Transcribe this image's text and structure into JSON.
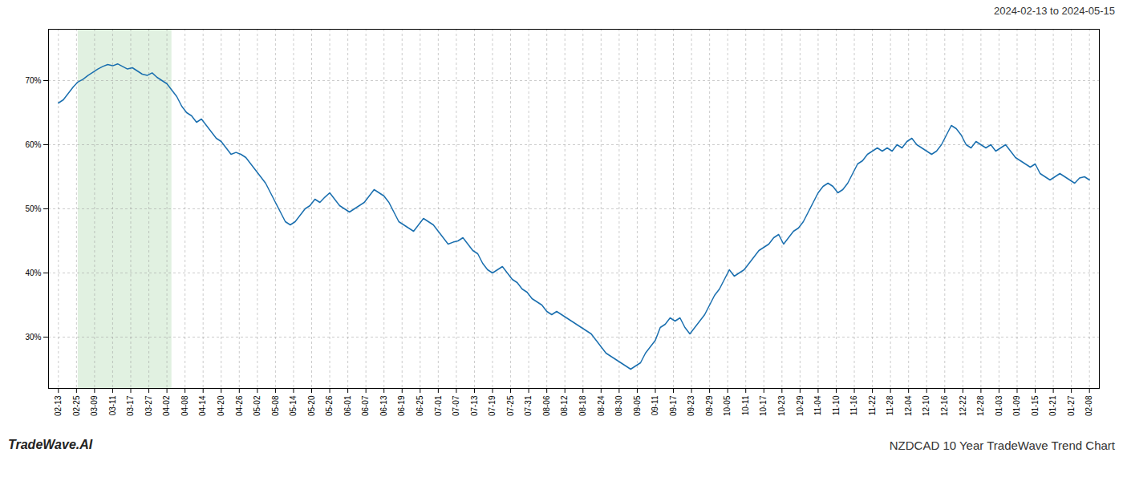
{
  "chart_data": {
    "type": "line",
    "title": "NZDCAD 10 Year TradeWave Trend Chart",
    "subtitle": "2024-02-13 to 2024-05-15",
    "annotations": [
      "TradeWave.AI"
    ],
    "color": "#1a6faf",
    "grid": true,
    "shade": {
      "x": [
        4,
        23
      ],
      "color": "#c8e6c8"
    },
    "xlim": [
      -2,
      211
    ],
    "xticks": [
      {
        "value": 0,
        "label": "02-13"
      },
      {
        "value": 3.6666666667,
        "label": "02-25"
      },
      {
        "value": 7.3333333333,
        "label": "03-09"
      },
      {
        "value": 11,
        "label": "03-11"
      },
      {
        "value": 14.6666666667,
        "label": "03-17"
      },
      {
        "value": 18.3333333333,
        "label": "03-27"
      },
      {
        "value": 22,
        "label": "04-02"
      },
      {
        "value": 25.6666666667,
        "label": "04-08"
      },
      {
        "value": 29.3333333333,
        "label": "04-14"
      },
      {
        "value": 33,
        "label": "04-20"
      },
      {
        "value": 36.6666666667,
        "label": "04-26"
      },
      {
        "value": 40.3333333333,
        "label": "05-02"
      },
      {
        "value": 44,
        "label": "05-08"
      },
      {
        "value": 47.6666666667,
        "label": "05-14"
      },
      {
        "value": 51.3333333333,
        "label": "05-20"
      },
      {
        "value": 55,
        "label": "05-26"
      },
      {
        "value": 58.6666666667,
        "label": "06-01"
      },
      {
        "value": 62.3333333333,
        "label": "06-07"
      },
      {
        "value": 66,
        "label": "06-13"
      },
      {
        "value": 69.6666666667,
        "label": "06-19"
      },
      {
        "value": 73.3333333333,
        "label": "06-25"
      },
      {
        "value": 77,
        "label": "07-01"
      },
      {
        "value": 80.6666666667,
        "label": "07-07"
      },
      {
        "value": 84.3333333333,
        "label": "07-13"
      },
      {
        "value": 88,
        "label": "07-19"
      },
      {
        "value": 91.6666666667,
        "label": "07-25"
      },
      {
        "value": 95.3333333333,
        "label": "07-31"
      },
      {
        "value": 99,
        "label": "08-06"
      },
      {
        "value": 102.6666666667,
        "label": "08-12"
      },
      {
        "value": 106.3333333333,
        "label": "08-18"
      },
      {
        "value": 110,
        "label": "08-24"
      },
      {
        "value": 113.6666666667,
        "label": "08-30"
      },
      {
        "value": 117.3333333333,
        "label": "09-05"
      },
      {
        "value": 121,
        "label": "09-11"
      },
      {
        "value": 124.6666666667,
        "label": "09-17"
      },
      {
        "value": 128.3333333333,
        "label": "09-23"
      },
      {
        "value": 132,
        "label": "09-29"
      },
      {
        "value": 135.6666666667,
        "label": "10-05"
      },
      {
        "value": 139.3333333333,
        "label": "10-11"
      },
      {
        "value": 143,
        "label": "10-17"
      },
      {
        "value": 146.6666666667,
        "label": "10-23"
      },
      {
        "value": 150.3333333333,
        "label": "10-29"
      },
      {
        "value": 154,
        "label": "11-04"
      },
      {
        "value": 157.6666666667,
        "label": "11-10"
      },
      {
        "value": 161.3333333333,
        "label": "11-16"
      },
      {
        "value": 165,
        "label": "11-22"
      },
      {
        "value": 168.6666666667,
        "label": "11-28"
      },
      {
        "value": 172.3333333333,
        "label": "12-04"
      },
      {
        "value": 176,
        "label": "12-10"
      },
      {
        "value": 179.6666666667,
        "label": "12-16"
      },
      {
        "value": 183.3333333333,
        "label": "12-22"
      },
      {
        "value": 187,
        "label": "12-28"
      },
      {
        "value": 190.6666666667,
        "label": "01-03"
      },
      {
        "value": 194.3333333333,
        "label": "01-09"
      },
      {
        "value": 198,
        "label": "01-15"
      },
      {
        "value": 201.6666666667,
        "label": "01-21"
      },
      {
        "value": 205.3333333333,
        "label": "01-27"
      },
      {
        "value": 209,
        "label": "02-08"
      }
    ],
    "ylim": [
      22,
      78
    ],
    "yticks": [
      {
        "value": 30,
        "label": "30%"
      },
      {
        "value": 40,
        "label": "40%"
      },
      {
        "value": 50,
        "label": "50%"
      },
      {
        "value": 60,
        "label": "60%"
      },
      {
        "value": 70,
        "label": "70%"
      }
    ],
    "x": [
      0,
      1,
      2,
      3,
      4,
      5,
      6,
      7,
      8,
      9,
      10,
      11,
      12,
      13,
      14,
      15,
      16,
      17,
      18,
      19,
      20,
      21,
      22,
      23,
      24,
      25,
      26,
      27,
      28,
      29,
      30,
      31,
      32,
      33,
      34,
      35,
      36,
      37,
      38,
      39,
      40,
      41,
      42,
      43,
      44,
      45,
      46,
      47,
      48,
      49,
      50,
      51,
      52,
      53,
      54,
      55,
      56,
      57,
      58,
      59,
      60,
      61,
      62,
      63,
      64,
      65,
      66,
      67,
      68,
      69,
      70,
      71,
      72,
      73,
      74,
      75,
      76,
      77,
      78,
      79,
      80,
      81,
      82,
      83,
      84,
      85,
      86,
      87,
      88,
      89,
      90,
      91,
      92,
      93,
      94,
      95,
      96,
      97,
      98,
      99,
      100,
      101,
      102,
      103,
      104,
      105,
      106,
      107,
      108,
      109,
      110,
      111,
      112,
      113,
      114,
      115,
      116,
      117,
      118,
      119,
      120,
      121,
      122,
      123,
      124,
      125,
      126,
      127,
      128,
      129,
      130,
      131,
      132,
      133,
      134,
      135,
      136,
      137,
      138,
      139,
      140,
      141,
      142,
      143,
      144,
      145,
      146,
      147,
      148,
      149,
      150,
      151,
      152,
      153,
      154,
      155,
      156,
      157,
      158,
      159,
      160,
      161,
      162,
      163,
      164,
      165,
      166,
      167,
      168,
      169,
      170,
      171,
      172,
      173,
      174,
      175,
      176,
      177,
      178,
      179,
      180,
      181,
      182,
      183,
      184,
      185,
      186,
      187,
      188,
      189,
      190,
      191,
      192,
      193,
      194,
      195,
      196,
      197,
      198,
      199,
      200,
      201,
      202,
      203,
      204,
      205,
      206,
      207,
      208,
      209
    ],
    "values": [
      66.5,
      67.0,
      68.0,
      69.0,
      69.8,
      70.2,
      70.8,
      71.3,
      71.8,
      72.2,
      72.5,
      72.3,
      72.6,
      72.2,
      71.8,
      72.0,
      71.5,
      71.0,
      70.8,
      71.2,
      70.5,
      70.0,
      69.5,
      68.5,
      67.5,
      66.0,
      65.0,
      64.5,
      63.5,
      64.0,
      63.0,
      62.0,
      61.0,
      60.5,
      59.5,
      58.5,
      58.8,
      58.5,
      58.0,
      57.0,
      56.0,
      55.0,
      54.0,
      52.5,
      51.0,
      49.5,
      48.0,
      47.5,
      48.0,
      49.0,
      50.0,
      50.5,
      51.5,
      51.0,
      51.8,
      52.5,
      51.5,
      50.5,
      50.0,
      49.5,
      50.0,
      50.5,
      51.0,
      52.0,
      53.0,
      52.5,
      52.0,
      51.0,
      49.5,
      48.0,
      47.5,
      47.0,
      46.5,
      47.5,
      48.5,
      48.0,
      47.5,
      46.5,
      45.5,
      44.5,
      44.8,
      45.0,
      45.5,
      44.5,
      43.5,
      43.0,
      41.5,
      40.5,
      40.0,
      40.5,
      41.0,
      40.0,
      39.0,
      38.5,
      37.5,
      37.0,
      36.0,
      35.5,
      35.0,
      34.0,
      33.5,
      34.0,
      33.5,
      33.0,
      32.5,
      32.0,
      31.5,
      31.0,
      30.5,
      29.5,
      28.5,
      27.5,
      27.0,
      26.5,
      26.0,
      25.5,
      25.0,
      25.5,
      26.0,
      27.5,
      28.5,
      29.5,
      31.5,
      32.0,
      33.0,
      32.5,
      33.0,
      31.5,
      30.5,
      31.5,
      32.5,
      33.5,
      35.0,
      36.5,
      37.5,
      39.0,
      40.5,
      39.5,
      40.0,
      40.5,
      41.5,
      42.5,
      43.5,
      44.0,
      44.5,
      45.5,
      46.0,
      44.5,
      45.5,
      46.5,
      47.0,
      48.0,
      49.5,
      51.0,
      52.5,
      53.5,
      54.0,
      53.5,
      52.5,
      53.0,
      54.0,
      55.5,
      57.0,
      57.5,
      58.5,
      59.0,
      59.5,
      59.0,
      59.5,
      59.0,
      60.0,
      59.5,
      60.5,
      61.0,
      60.0,
      59.5,
      59.0,
      58.5,
      59.0,
      60.0,
      61.5,
      63.0,
      62.5,
      61.5,
      60.0,
      59.5,
      60.5,
      60.0,
      59.5,
      60.0,
      59.0,
      59.5,
      60.0,
      59.0,
      58.0,
      57.5,
      57.0,
      56.5,
      57.0,
      55.5,
      55.0,
      54.5,
      55.0,
      55.5,
      55.0,
      54.5,
      54.0,
      54.8,
      55.0,
      54.5
    ]
  }
}
